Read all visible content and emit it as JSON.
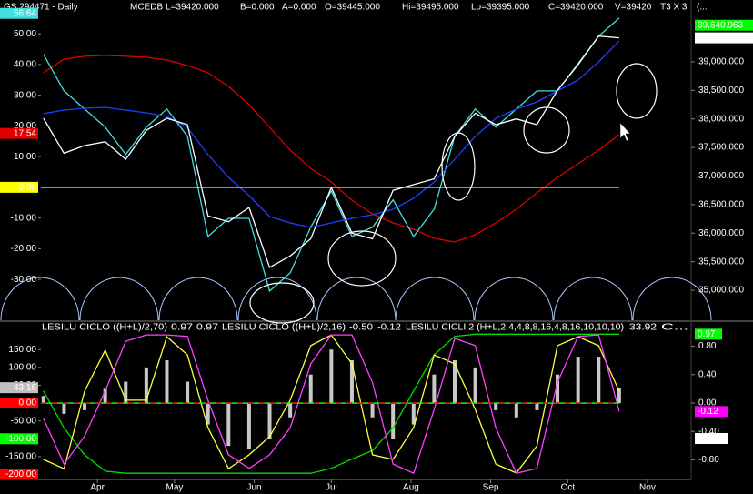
{
  "header": [
    {
      "text": "GS:294471 - Daily",
      "color": "#ffffff"
    },
    {
      "text": "MCEDB",
      "color": "#ffffff"
    },
    {
      "text": "L=39420.000",
      "color": "#00ff00"
    },
    {
      "text": "B=0.000",
      "color": "#ffffff"
    },
    {
      "text": "A=0.000",
      "color": "#ffffff"
    },
    {
      "text": "O=39445.000",
      "color": "#00ff00"
    },
    {
      "text": "Hi=39495.000",
      "color": "#ffffff"
    },
    {
      "text": "Lo=39395.000",
      "color": "#ffffff"
    },
    {
      "text": "C=39420.000",
      "color": "#00ff00"
    },
    {
      "text": "V=39420",
      "color": "#ffffff"
    },
    {
      "text": "T3 X 3",
      "color": "#ffffff"
    },
    {
      "text": "(...",
      "color": "#ffffff"
    }
  ],
  "chart_data": [
    {
      "type": "line",
      "xlim": [
        9,
        262
      ],
      "ylim": [
        -43.3,
        61
      ],
      "y2lim": [
        34474,
        40083
      ],
      "x": [
        10,
        18,
        26,
        34,
        42,
        50,
        58,
        66,
        74,
        82,
        90,
        98,
        106,
        114,
        122,
        130,
        138,
        146,
        154,
        162,
        170,
        178,
        186,
        194,
        202,
        210,
        218,
        226,
        234
      ],
      "yticks": [
        {
          "value": 50,
          "label": "50.00"
        },
        {
          "value": 40,
          "label": "40.00"
        },
        {
          "value": 30,
          "label": "30.00"
        },
        {
          "value": 20,
          "label": "20.00"
        },
        {
          "value": 10,
          "label": "10.00"
        },
        {
          "value": -10,
          "label": "-10.00"
        },
        {
          "value": -20,
          "label": "-20.00"
        },
        {
          "value": -30,
          "label": "-30.00"
        }
      ],
      "y2ticks": [
        {
          "value": 39000,
          "label": "39,000.000"
        },
        {
          "value": 38500,
          "label": "38,500.000"
        },
        {
          "value": 38000,
          "label": "38,000.000"
        },
        {
          "value": 37500,
          "label": "37,500.000"
        },
        {
          "value": 37000,
          "label": "37,000.000"
        },
        {
          "value": 36500,
          "label": "36,500.000"
        },
        {
          "value": 36000,
          "label": "36,000.000"
        },
        {
          "value": 35500,
          "label": "35,500.000"
        },
        {
          "value": 35000,
          "label": "35,000.000"
        }
      ],
      "value_boxes": [
        {
          "value": 56.64,
          "label": "56.64",
          "color": "#40e0e0",
          "axis": "y"
        },
        {
          "value": 17.54,
          "label": "17.54",
          "color": "#e00000",
          "axis": "y"
        },
        {
          "value": 0,
          "label": "0.00",
          "color": "#ffff00",
          "axis": "y",
          "line": "#ffff00"
        },
        {
          "value": 39640.963,
          "label": "39,640.963",
          "color": "#00ff00",
          "axis": "y2"
        },
        {
          "value": 39420,
          "label": "39,420.000",
          "color": "#ffffff",
          "axis": "y2"
        }
      ],
      "series": [
        {
          "color": "#e00000",
          "axis": "y2",
          "values": [
            38809,
            39048,
            39096,
            39112,
            39096,
            39080,
            39032,
            38936,
            38809,
            38570,
            38251,
            37852,
            37454,
            37135,
            36896,
            36577,
            36338,
            36179,
            36067,
            35908,
            35844,
            35972,
            36179,
            36418,
            36705,
            36976,
            37215,
            37454,
            37725
          ]
        },
        {
          "color": "#40e0e0",
          "axis": "y",
          "values": [
            43.3,
            31.4,
            25.5,
            19.6,
            10.7,
            19.6,
            25.5,
            16.6,
            -16.0,
            -10.1,
            -10.1,
            -33.8,
            -27.9,
            -13.0,
            -1.2,
            -16.0,
            -13.0,
            -4.1,
            -16.0,
            -7.1,
            16.6,
            25.5,
            19.6,
            25.5,
            31.4,
            31.4,
            40.3,
            49.2,
            55.1
          ]
        },
        {
          "color": "#2040ff",
          "axis": "y2",
          "values": [
            38092,
            38155,
            38187,
            38203,
            38155,
            38107,
            38044,
            37852,
            37374,
            36976,
            36657,
            36290,
            36179,
            36099,
            36179,
            36258,
            36322,
            36418,
            36609,
            36896,
            37294,
            37693,
            38012,
            38171,
            38299,
            38490,
            38681,
            39000,
            39367
          ]
        },
        {
          "color": "#ffffff",
          "axis": "y2",
          "values": [
            38012,
            37400,
            37534,
            37600,
            37295,
            37800,
            38012,
            37900,
            36300,
            36200,
            36450,
            35400,
            35600,
            35900,
            36800,
            36000,
            35900,
            36750,
            36850,
            36950,
            37693,
            38100,
            37900,
            38000,
            37900,
            38500,
            38950,
            39450,
            39420
          ]
        }
      ]
    },
    {
      "type": "line",
      "xlim": [
        9,
        262
      ],
      "ylim": [
        -214,
        222
      ],
      "y2lim": [
        -1.077,
        1.115
      ],
      "x": [
        10,
        18,
        26,
        34,
        42,
        50,
        58,
        66,
        74,
        82,
        90,
        98,
        106,
        114,
        122,
        130,
        138,
        146,
        154,
        162,
        170,
        178,
        186,
        194,
        202,
        210,
        218,
        226,
        234
      ],
      "xticks": [
        {
          "value": 31,
          "label": "Apr"
        },
        {
          "value": 61,
          "label": "May"
        },
        {
          "value": 92,
          "label": "Jun"
        },
        {
          "value": 122,
          "label": "Jul"
        },
        {
          "value": 153,
          "label": "Aug"
        },
        {
          "value": 184,
          "label": "Sep"
        },
        {
          "value": 214,
          "label": "Oct"
        },
        {
          "value": 245,
          "label": "Nov"
        }
      ],
      "yticks": [
        {
          "value": 150,
          "label": "150.00"
        },
        {
          "value": 100,
          "label": "100.00"
        },
        {
          "value": 50,
          "label": "50.00"
        },
        {
          "value": -50,
          "label": "-50.00"
        },
        {
          "value": -150,
          "label": "-150.00"
        }
      ],
      "y2ticks": [
        {
          "value": 0.8,
          "label": "0.80"
        },
        {
          "value": 0.4,
          "label": "0.40"
        },
        {
          "value": 0,
          "label": "0.00"
        },
        {
          "value": -0.4,
          "label": "-0.40"
        },
        {
          "value": -0.8,
          "label": "-0.80"
        }
      ],
      "legend": [
        {
          "text": "LESILU CICLO  ((H+L)/2,70)",
          "color": "#ffffff"
        },
        {
          "text": "0.97",
          "color": "#00ff00"
        },
        {
          "text": "0.97",
          "color": "#00ff00"
        },
        {
          "text": "LESILU CICLO  ((H+L)/2,16)",
          "color": "#ffffff"
        },
        {
          "text": "-0.50",
          "color": "#ffffff"
        },
        {
          "text": "-0.12",
          "color": "#ff00ff"
        },
        {
          "text": "LESILU CICLI 2  (H+L,2,4,4,8,8,16,4,8,16,10,10,10)",
          "color": "#ffffff"
        },
        {
          "text": "33.92",
          "color": "#ffff40"
        },
        {
          "text": "C...",
          "color": "#ffffff"
        }
      ],
      "value_boxes": [
        {
          "value": 43.16,
          "label": "43.16",
          "color": "#c0c0c0",
          "axis": "y"
        },
        {
          "value": 0,
          "label": "0.00",
          "color": "#ff0000",
          "axis": "y",
          "line": "#00ff00"
        },
        {
          "value": -100,
          "label": "-100.00",
          "color": "#00ff00",
          "axis": "y"
        },
        {
          "value": -200,
          "label": "-200.00",
          "color": "#ff0000",
          "axis": "y"
        },
        {
          "value": 0.97,
          "label": "0.97",
          "color": "#00ff00",
          "axis": "y2"
        },
        {
          "value": -0.12,
          "label": "-0.12",
          "color": "#ff00ff",
          "axis": "y2"
        },
        {
          "value": -0.5,
          "label": "-0.50",
          "color": "#ffffff",
          "axis": "y2"
        }
      ],
      "series": [
        {
          "type": "bar",
          "color": "#c8c8c8",
          "axis": "y",
          "values": [
            20,
            -30,
            -20,
            40,
            60,
            100,
            120,
            60,
            -60,
            -120,
            -130,
            -100,
            -40,
            80,
            150,
            120,
            -40,
            -100,
            -60,
            80,
            120,
            100,
            -20,
            -40,
            -20,
            80,
            130,
            130,
            43.16
          ]
        },
        {
          "color": "#00e000",
          "axis": "y2",
          "values": [
            0.17,
            -0.35,
            -0.73,
            -0.96,
            -0.99,
            -0.99,
            -0.99,
            -0.99,
            -0.99,
            -0.99,
            -0.99,
            -0.99,
            -0.99,
            -0.99,
            -0.92,
            -0.79,
            -0.67,
            -0.35,
            0.17,
            0.68,
            0.94,
            0.97,
            0.97,
            0.97,
            0.97,
            0.97,
            0.97,
            0.97,
            0.97
          ]
        },
        {
          "color": "#ffff40",
          "axis": "y",
          "values": [
            -158,
            -184,
            33,
            148,
            8,
            8,
            186,
            135,
            -69,
            -184,
            -145,
            -94,
            8,
            161,
            191,
            110,
            -145,
            -158,
            -69,
            135,
            110,
            -18,
            -171,
            -196,
            -120,
            161,
            186,
            161,
            33
          ]
        },
        {
          "color": "#ff40ff",
          "axis": "y2",
          "values": [
            -0.22,
            -0.86,
            -0.47,
            0.17,
            0.87,
            0.96,
            0.96,
            0.94,
            0.04,
            -0.73,
            -0.92,
            -0.73,
            -0.35,
            0.55,
            0.96,
            0.96,
            0.29,
            -0.86,
            -0.99,
            -0.09,
            0.91,
            0.81,
            -0.35,
            -0.99,
            -0.92,
            0.29,
            0.94,
            0.96,
            -0.12
          ]
        }
      ]
    }
  ]
}
